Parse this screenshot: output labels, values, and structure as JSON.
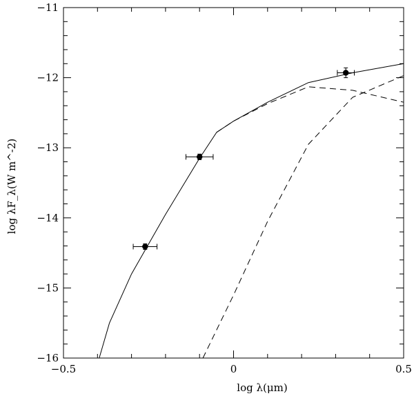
{
  "chart_data": {
    "type": "line",
    "xlabel": "log λ(μm)",
    "ylabel": "log λF_λ(W m^-2)",
    "xlim": [
      -0.5,
      0.5
    ],
    "ylim": [
      -16,
      -11
    ],
    "x_major_ticks": [
      -0.5,
      0,
      0.5
    ],
    "x_tick_labels": [
      "−0.5",
      "0",
      "0.5"
    ],
    "x_minor_step": 0.1,
    "y_major_ticks": [
      -16,
      -15,
      -14,
      -13,
      -12,
      -11
    ],
    "y_tick_labels": [
      "−16",
      "−15",
      "−14",
      "−13",
      "−12",
      "−11"
    ],
    "y_minor_step": 0.2,
    "grid": false,
    "series": [
      {
        "style": "solid",
        "x": [
          -0.395,
          -0.365,
          -0.3,
          -0.2,
          -0.1,
          -0.05,
          0.0,
          0.1,
          0.22,
          0.35,
          0.5
        ],
        "y": [
          -16.0,
          -15.5,
          -14.8,
          -13.95,
          -13.15,
          -12.78,
          -12.62,
          -12.35,
          -12.07,
          -11.93,
          -11.8
        ]
      },
      {
        "style": "dashed",
        "x": [
          -0.05,
          0.0,
          0.1,
          0.22,
          0.35,
          0.5
        ],
        "y": [
          -12.78,
          -12.62,
          -12.37,
          -12.13,
          -12.18,
          -12.35
        ]
      },
      {
        "style": "dashed",
        "x": [
          -0.09,
          0.0,
          0.1,
          0.22,
          0.35,
          0.5
        ],
        "y": [
          -16.0,
          -15.1,
          -14.05,
          -12.95,
          -12.28,
          -11.97
        ]
      }
    ],
    "points": [
      {
        "x": -0.26,
        "y": -14.41,
        "xerr": 0.035,
        "yerr": 0.04
      },
      {
        "x": -0.1,
        "y": -13.13,
        "xerr": 0.04,
        "yerr": 0.04
      },
      {
        "x": 0.33,
        "y": -11.93,
        "xerr": 0.025,
        "yerr": 0.07
      }
    ]
  }
}
